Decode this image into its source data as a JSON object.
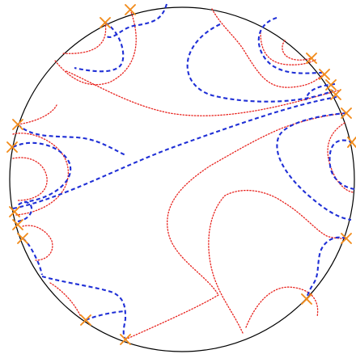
{
  "figure": {
    "colors": {
      "disk_boundary": "#000000",
      "red_dotted_curves": "#e8231e",
      "blue_dashed_curves": "#1f2fd6",
      "boundary_markers": "#f28c1c",
      "background": "#ffffff"
    },
    "marker_symbol": "x-cross",
    "marker_count": 17,
    "red_curve_count": 12,
    "blue_curve_count": 10
  }
}
